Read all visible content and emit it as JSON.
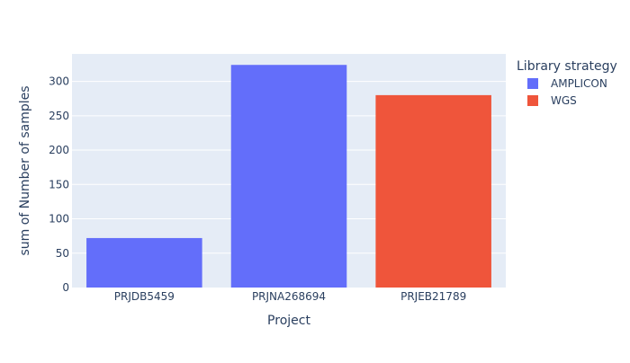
{
  "chart_data": {
    "type": "bar",
    "title": "",
    "xlabel": "Project",
    "ylabel": "sum of Number of samples",
    "categories": [
      "PRJDB5459",
      "PRJNA268694",
      "PRJEB21789"
    ],
    "values": [
      72,
      324,
      280
    ],
    "bar_series": [
      "AMPLICON",
      "AMPLICON",
      "WGS"
    ],
    "ylim": [
      0,
      340
    ],
    "yticks": [
      0,
      50,
      100,
      150,
      200,
      250,
      300
    ],
    "grid": true,
    "legend": {
      "title": "Library strategy",
      "placement": "right",
      "items": [
        {
          "name": "AMPLICON",
          "color": "#636efa"
        },
        {
          "name": "WGS",
          "color": "#ef553b"
        }
      ]
    },
    "plot_background": "#e5ecf6"
  }
}
